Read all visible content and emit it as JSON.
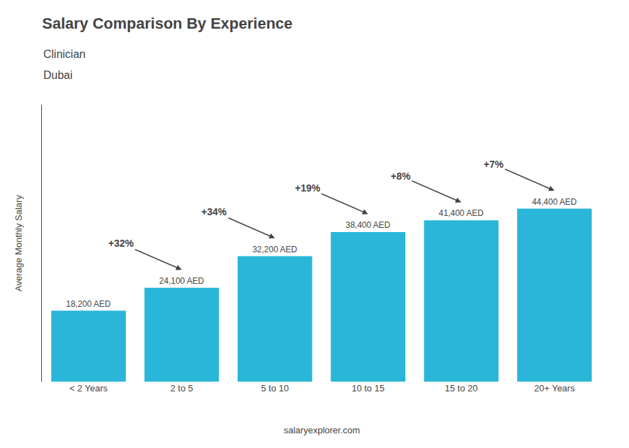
{
  "chart_data": {
    "type": "bar",
    "title": "Salary Comparison By Experience",
    "subtitle": [
      "Clinician",
      "Dubai"
    ],
    "ylabel": "Average Monthly Salary",
    "categories": [
      "< 2 Years",
      "2 to 5",
      "5 to 10",
      "10 to 15",
      "15 to 20",
      "20+ Years"
    ],
    "values": [
      18200,
      24100,
      32200,
      38400,
      41400,
      44400
    ],
    "value_labels": [
      "18,200 AED",
      "24,100 AED",
      "32,200 AED",
      "38,400 AED",
      "41,400 AED",
      "44,400 AED"
    ],
    "data_labels": true,
    "color": "#29b6d8",
    "ylim": [
      0,
      71040
    ],
    "tick_labels": "x",
    "grid": false,
    "annotations": [
      {
        "text": "+32%",
        "from": "< 2 Years",
        "to": "2 to 5"
      },
      {
        "text": "+34%",
        "from": "2 to 5",
        "to": "5 to 10"
      },
      {
        "text": "+19%",
        "from": "5 to 10",
        "to": "10 to 15"
      },
      {
        "text": "+8%",
        "from": "10 to 15",
        "to": "15 to 20"
      },
      {
        "text": "+7%",
        "from": "15 to 20",
        "to": "20+ Years"
      },
      {
        "text": "salaryexplorer.com"
      }
    ]
  }
}
